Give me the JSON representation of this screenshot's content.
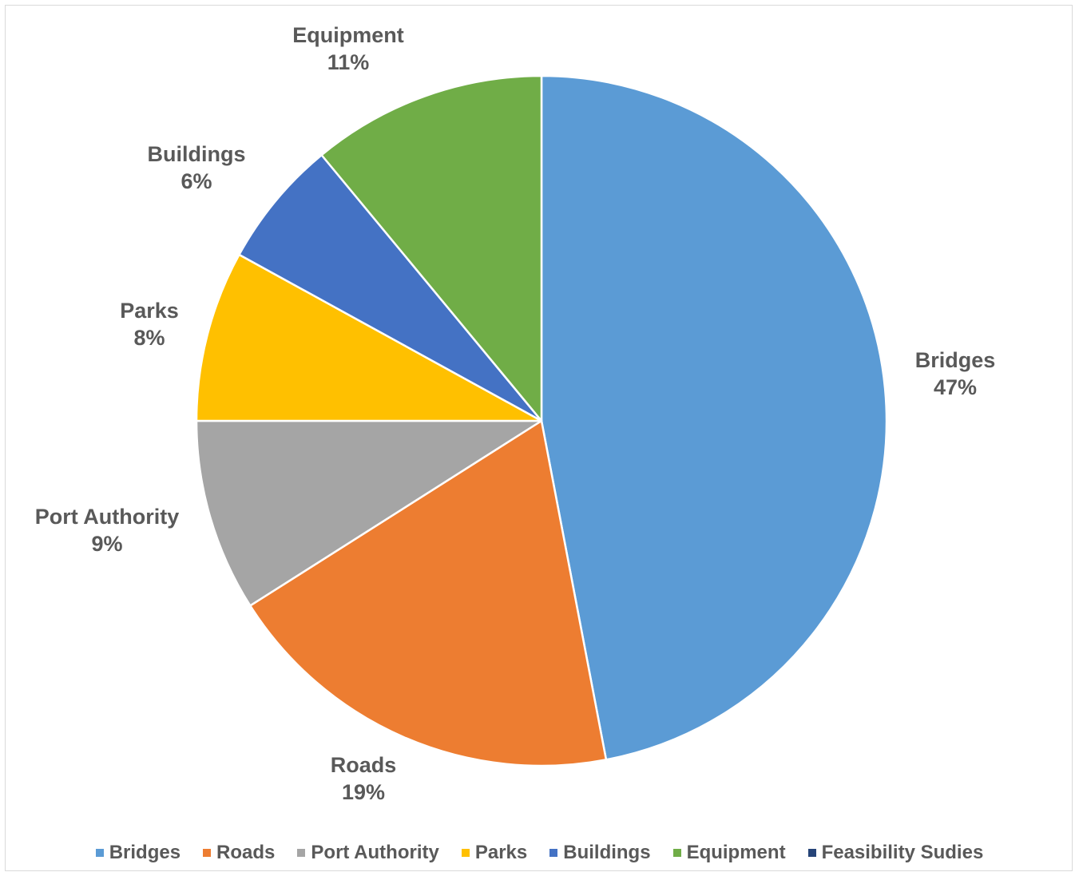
{
  "chart_data": {
    "type": "pie",
    "title": "",
    "slices": [
      {
        "name": "Bridges",
        "value": 47,
        "label": "47%",
        "color": "#5B9BD5"
      },
      {
        "name": "Roads",
        "value": 19,
        "label": "19%",
        "color": "#ED7D31"
      },
      {
        "name": "Port Authority",
        "value": 9,
        "label": "9%",
        "color": "#A5A5A5"
      },
      {
        "name": "Parks",
        "value": 8,
        "label": "8%",
        "color": "#FFC000"
      },
      {
        "name": "Buildings",
        "value": 6,
        "label": "6%",
        "color": "#4472C4"
      },
      {
        "name": "Equipment",
        "value": 11,
        "label": "11%",
        "color": "#70AD47"
      },
      {
        "name": "Feasibility Sudies",
        "value": 0,
        "label": "",
        "color": "#264478"
      }
    ],
    "start_direction": "12 o'clock",
    "direction": "clockwise",
    "legend_position": "bottom"
  }
}
